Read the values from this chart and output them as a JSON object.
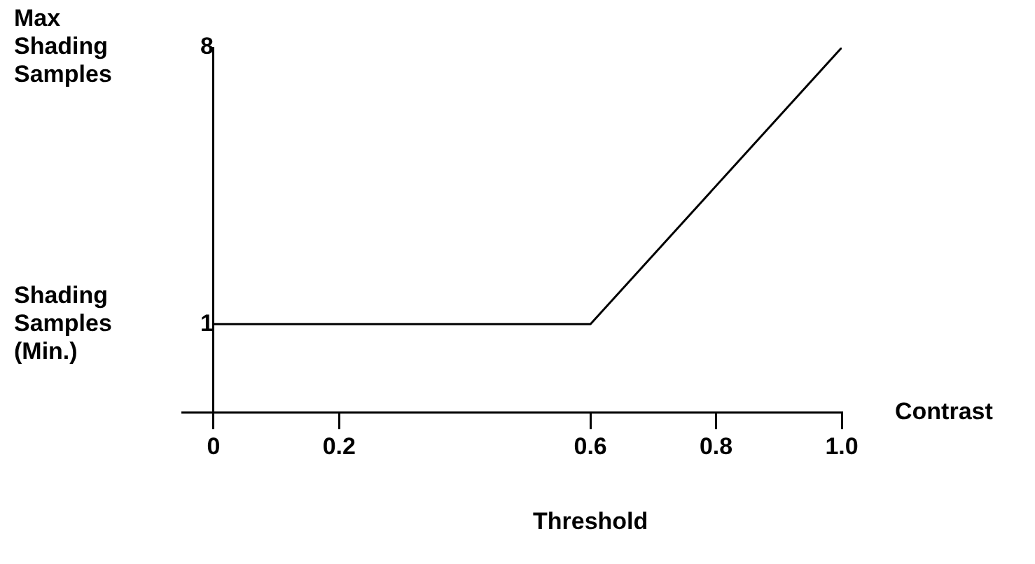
{
  "chart_data": {
    "type": "line",
    "xlabel": "Contrast",
    "x": [
      0,
      0.6,
      1.0
    ],
    "series": [
      {
        "values": [
          1,
          1,
          8
        ],
        "color": "#000000"
      }
    ],
    "xlim": [
      -0.05,
      1.0
    ],
    "xticks": [
      {
        "value": 0,
        "label": "0"
      },
      0.2,
      0.6,
      0.8,
      {
        "value": 1,
        "label": "1.0"
      }
    ],
    "ylim": [
      -1.23,
      8
    ],
    "yticks": [
      1,
      8
    ],
    "grid": false,
    "legend": false,
    "marker": "none",
    "line_style": "solid",
    "annotations": [
      "Max Shading Samples",
      "Shading Samples (Min.)",
      "Threshold"
    ]
  }
}
